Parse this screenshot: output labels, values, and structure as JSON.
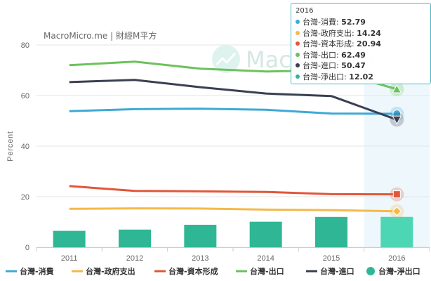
{
  "brand": {
    "text": "MacroMicro.me | 財經M平方",
    "watermark_text": "MacroMicro"
  },
  "chart_data": {
    "type": "line",
    "categories": [
      "2011",
      "2012",
      "2013",
      "2014",
      "2015",
      "2016"
    ],
    "xlabel": "",
    "ylabel": "Percent",
    "ylim": [
      0,
      80
    ],
    "yticks": [
      0,
      20,
      40,
      60,
      80
    ],
    "grid": true,
    "legend_position": "bottom",
    "series": [
      {
        "name": "台灣-消費",
        "type": "line",
        "color": "#3ea9d6",
        "marker": "circle",
        "values": [
          53.8,
          54.6,
          54.8,
          54.4,
          52.9,
          52.79
        ]
      },
      {
        "name": "台灣-政府支出",
        "type": "line",
        "color": "#f5b94a",
        "marker": "diamond",
        "values": [
          15.2,
          15.4,
          15.3,
          14.9,
          14.7,
          14.24
        ]
      },
      {
        "name": "台灣-資本形成",
        "type": "line",
        "color": "#e0573a",
        "marker": "square",
        "values": [
          24.2,
          22.3,
          22.1,
          21.9,
          21.0,
          20.94
        ]
      },
      {
        "name": "台灣-出口",
        "type": "line",
        "color": "#6cc25c",
        "marker": "triangle",
        "values": [
          72.0,
          73.4,
          70.6,
          69.5,
          70.0,
          62.49
        ]
      },
      {
        "name": "台灣-進口",
        "type": "line",
        "color": "#3b3f52",
        "marker": "triangle-down",
        "values": [
          65.3,
          66.2,
          63.3,
          60.8,
          59.8,
          50.47
        ]
      },
      {
        "name": "台灣-淨出口",
        "type": "bar",
        "color": "#2fb795",
        "highlight_color": "#4dd6b3",
        "values": [
          6.5,
          7.0,
          8.9,
          10.1,
          12.0,
          12.02
        ]
      }
    ]
  },
  "tooltip": {
    "header": "2016",
    "rows": [
      {
        "label": "台灣-消費: ",
        "value": "52.79",
        "color": "#3ea9d6"
      },
      {
        "label": "台灣-政府支出: ",
        "value": "14.24",
        "color": "#f5b94a"
      },
      {
        "label": "台灣-資本形成: ",
        "value": "20.94",
        "color": "#e0573a"
      },
      {
        "label": "台灣-出口: ",
        "value": "62.49",
        "color": "#6cc25c"
      },
      {
        "label": "台灣-進口: ",
        "value": "50.47",
        "color": "#3b3f52"
      },
      {
        "label": "台灣-淨出口: ",
        "value": "12.02",
        "color": "#2fb795"
      }
    ]
  }
}
